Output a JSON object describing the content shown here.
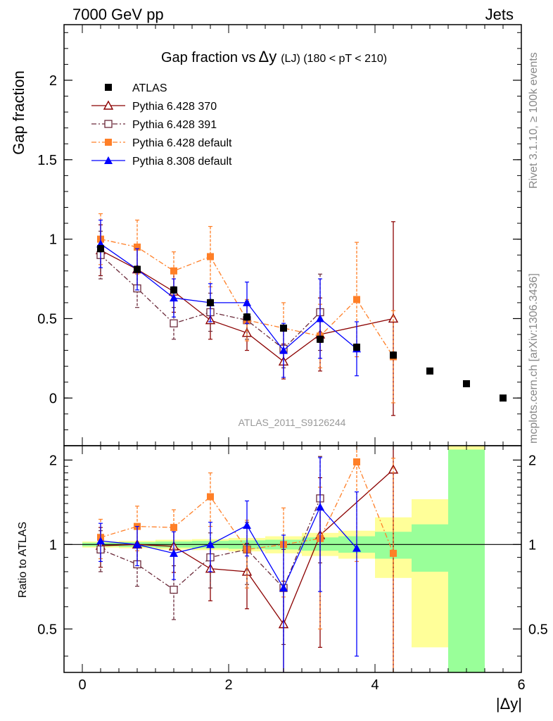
{
  "header": {
    "left": "7000 GeV pp",
    "right": "Jets"
  },
  "side_labels": {
    "rivet": "Rivet 3.1.10, ≥ 100k events",
    "mcplots": "mcplots.cern.ch [arXiv:1306.3436]"
  },
  "chart_data": [
    {
      "type": "scatter",
      "title_main": "Gap fraction vs",
      "title_delta": "Δy",
      "title_rest": "(LJ) (180 < pT < 210)",
      "watermark": "ATLAS_2011_S9126244",
      "ylabel": "Gap fraction",
      "xlim": [
        -0.25,
        6.0
      ],
      "ylim": [
        -0.3,
        2.35
      ],
      "yticks": [
        0,
        0.5,
        1,
        1.5,
        2
      ],
      "ytick_labels": [
        "0",
        "0.5",
        "1",
        "1.5",
        "2"
      ],
      "grid": false,
      "legend_position": "top-left",
      "legend": [
        {
          "label": "ATLAS",
          "series": 0
        },
        {
          "label": "Pythia 6.428 370",
          "series": 1
        },
        {
          "label": "Pythia 6.428 391",
          "series": 2
        },
        {
          "label": "Pythia 6.428 default",
          "series": 3
        },
        {
          "label": "Pythia 8.308 default",
          "series": 4
        }
      ],
      "series": [
        {
          "name": "ATLAS",
          "color": "#000000",
          "marker": "square",
          "line": "none",
          "x": [
            0.25,
            0.75,
            1.25,
            1.75,
            2.25,
            2.75,
            3.25,
            3.75,
            4.25,
            4.75,
            5.25,
            5.75
          ],
          "y": [
            0.94,
            0.81,
            0.68,
            0.6,
            0.51,
            0.44,
            0.37,
            0.32,
            0.27,
            0.17,
            0.09,
            0.0
          ],
          "err": [
            0.02,
            0.02,
            0.02,
            0.02,
            0.02,
            0.02,
            0.02,
            0.02,
            0.02,
            0.01,
            0.01,
            0.01
          ]
        },
        {
          "name": "Pythia 6.428 370",
          "color": "#8b0000",
          "marker": "triangle-open",
          "line": "solid",
          "x": [
            0.25,
            0.75,
            1.25,
            1.75,
            2.25,
            2.75,
            3.25,
            4.25
          ],
          "y": [
            0.93,
            0.81,
            0.67,
            0.49,
            0.41,
            0.23,
            0.4,
            0.5
          ],
          "err": [
            0.16,
            0.14,
            0.13,
            0.12,
            0.11,
            0.11,
            0.23,
            0.61
          ]
        },
        {
          "name": "Pythia 6.428 391",
          "color": "#6b2a3a",
          "marker": "square-open",
          "line": "dashdot",
          "x": [
            0.25,
            0.75,
            1.25,
            1.75,
            2.25,
            2.75,
            3.25
          ],
          "y": [
            0.9,
            0.69,
            0.47,
            0.54,
            0.49,
            0.31,
            0.54
          ],
          "err": [
            0.15,
            0.12,
            0.1,
            0.12,
            0.12,
            0.12,
            0.24
          ]
        },
        {
          "name": "Pythia 6.428 default",
          "color": "#ff7f27",
          "marker": "square",
          "line": "dashdot",
          "x": [
            0.25,
            0.75,
            1.25,
            1.75,
            2.25,
            2.75,
            3.25,
            3.75,
            4.25
          ],
          "y": [
            1.0,
            0.95,
            0.8,
            0.89,
            0.49,
            0.44,
            0.39,
            0.62,
            0.26
          ],
          "err": [
            0.16,
            0.17,
            0.12,
            0.19,
            0.13,
            0.16,
            0.2,
            0.36,
            0.29
          ]
        },
        {
          "name": "Pythia 8.308 default",
          "color": "#0000ff",
          "marker": "triangle",
          "line": "solid",
          "x": [
            0.25,
            0.75,
            1.25,
            1.75,
            2.25,
            2.75,
            3.25,
            3.75
          ],
          "y": [
            0.97,
            0.81,
            0.63,
            0.6,
            0.6,
            0.3,
            0.5,
            0.31
          ],
          "err": [
            0.15,
            0.13,
            0.12,
            0.12,
            0.13,
            0.17,
            0.25,
            0.17
          ]
        }
      ]
    },
    {
      "type": "scatter",
      "ylabel": "Ratio to ATLAS",
      "xlabel": "|Δy|",
      "xlim": [
        -0.25,
        6.0
      ],
      "ylim": [
        0.35,
        2.25
      ],
      "xticks": [
        0,
        2,
        4,
        6
      ],
      "xtick_labels": [
        "0",
        "2",
        "4",
        "6"
      ],
      "yticks": [
        0.5,
        1,
        2
      ],
      "ytick_labels": [
        "0.5",
        "1",
        "2"
      ],
      "reference_line": 1,
      "bands": [
        {
          "x": [
            0,
            0.5
          ],
          "green": [
            0.985,
            1.015
          ],
          "yellow": [
            0.975,
            1.025
          ]
        },
        {
          "x": [
            0.5,
            1.0
          ],
          "green": [
            0.98,
            1.02
          ],
          "yellow": [
            0.97,
            1.03
          ]
        },
        {
          "x": [
            1.0,
            1.5
          ],
          "green": [
            0.975,
            1.025
          ],
          "yellow": [
            0.96,
            1.04
          ]
        },
        {
          "x": [
            1.5,
            2.0
          ],
          "green": [
            0.97,
            1.03
          ],
          "yellow": [
            0.955,
            1.045
          ]
        },
        {
          "x": [
            2.0,
            2.5
          ],
          "green": [
            0.965,
            1.035
          ],
          "yellow": [
            0.945,
            1.055
          ]
        },
        {
          "x": [
            2.5,
            3.0
          ],
          "green": [
            0.96,
            1.04
          ],
          "yellow": [
            0.93,
            1.07
          ]
        },
        {
          "x": [
            3.0,
            3.5
          ],
          "green": [
            0.95,
            1.06
          ],
          "yellow": [
            0.91,
            1.1
          ]
        },
        {
          "x": [
            3.5,
            4.0
          ],
          "green": [
            0.935,
            1.07
          ],
          "yellow": [
            0.89,
            1.12
          ]
        },
        {
          "x": [
            4.0,
            4.5
          ],
          "green": [
            0.89,
            1.11
          ],
          "yellow": [
            0.76,
            1.25
          ]
        },
        {
          "x": [
            4.5,
            5.0
          ],
          "green": [
            0.8,
            1.18
          ],
          "yellow": [
            0.43,
            1.45
          ]
        },
        {
          "x": [
            5.0,
            5.5
          ],
          "green": [
            0.35,
            2.18
          ],
          "yellow": [
            0.35,
            2.25
          ]
        }
      ],
      "series": [
        {
          "name": "Pythia 6.428 370",
          "color": "#8b0000",
          "marker": "triangle-open",
          "line": "solid",
          "x": [
            0.25,
            0.75,
            1.25,
            1.75,
            2.25,
            2.75,
            3.25,
            4.25
          ],
          "y": [
            0.99,
            1.0,
            0.985,
            0.82,
            0.8,
            0.52,
            1.08,
            1.85
          ],
          "err": [
            0.16,
            0.17,
            0.19,
            0.19,
            0.21,
            0.22,
            0.65,
            2.0
          ]
        },
        {
          "name": "Pythia 6.428 391",
          "color": "#6b2a3a",
          "marker": "square-open",
          "line": "dashdot",
          "x": [
            0.25,
            0.75,
            1.25,
            1.75,
            2.25,
            2.75,
            3.25
          ],
          "y": [
            0.96,
            0.85,
            0.69,
            0.9,
            0.96,
            0.7,
            1.46
          ],
          "err": [
            0.16,
            0.14,
            0.15,
            0.2,
            0.24,
            0.26,
            0.6
          ]
        },
        {
          "name": "Pythia 6.428 default",
          "color": "#ff7f27",
          "marker": "square",
          "line": "dashdot",
          "x": [
            0.25,
            0.75,
            1.25,
            1.75,
            2.25,
            2.75,
            3.25,
            3.75,
            4.25
          ],
          "y": [
            1.06,
            1.16,
            1.15,
            1.48,
            0.96,
            1.0,
            1.05,
            1.97,
            0.93
          ],
          "err": [
            0.17,
            0.21,
            0.18,
            0.32,
            0.26,
            0.35,
            0.55,
            1.1,
            1.1
          ]
        },
        {
          "name": "Pythia 8.308 default",
          "color": "#0000ff",
          "marker": "triangle",
          "line": "solid",
          "x": [
            0.25,
            0.75,
            1.25,
            1.75,
            2.25,
            2.75,
            3.25,
            3.75
          ],
          "y": [
            1.03,
            1.0,
            0.93,
            1.0,
            1.17,
            0.7,
            1.36,
            0.97
          ],
          "err": [
            0.16,
            0.16,
            0.18,
            0.2,
            0.26,
            0.38,
            0.68,
            0.57
          ]
        }
      ]
    }
  ]
}
